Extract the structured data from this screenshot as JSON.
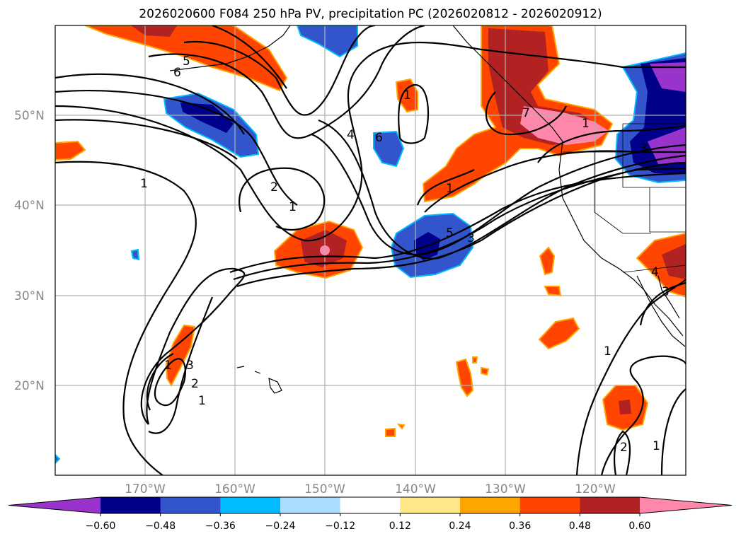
{
  "title": "2026020600 F084 250 hPa PV, precipitation PC (2026020812 - 2026020912)",
  "map": {
    "lat_labels": [
      "50°N",
      "40°N",
      "30°N",
      "20°N"
    ],
    "lon_labels": [
      "170°W",
      "160°W",
      "150°W",
      "140°W",
      "130°W",
      "120°W"
    ],
    "contour_labels": [
      "6",
      "5",
      "4",
      "6",
      "1",
      "2",
      "1",
      "1",
      "5",
      "3",
      "1",
      "7",
      "1",
      "3",
      "1",
      "3",
      "4",
      "3",
      "2",
      "1",
      "1",
      "2",
      "1"
    ]
  },
  "colorbar": {
    "ticks": [
      "−0.60",
      "−0.48",
      "−0.36",
      "−0.24",
      "−0.12",
      "0.12",
      "0.24",
      "0.36",
      "0.48",
      "0.60"
    ],
    "colors": [
      "#9933cc",
      "#00008b",
      "#3355cc",
      "#00bbff",
      "#aaddff",
      "#ffffff",
      "#ffe88a",
      "#ffa500",
      "#ff4500",
      "#b22222",
      "#ff88aa"
    ]
  }
}
